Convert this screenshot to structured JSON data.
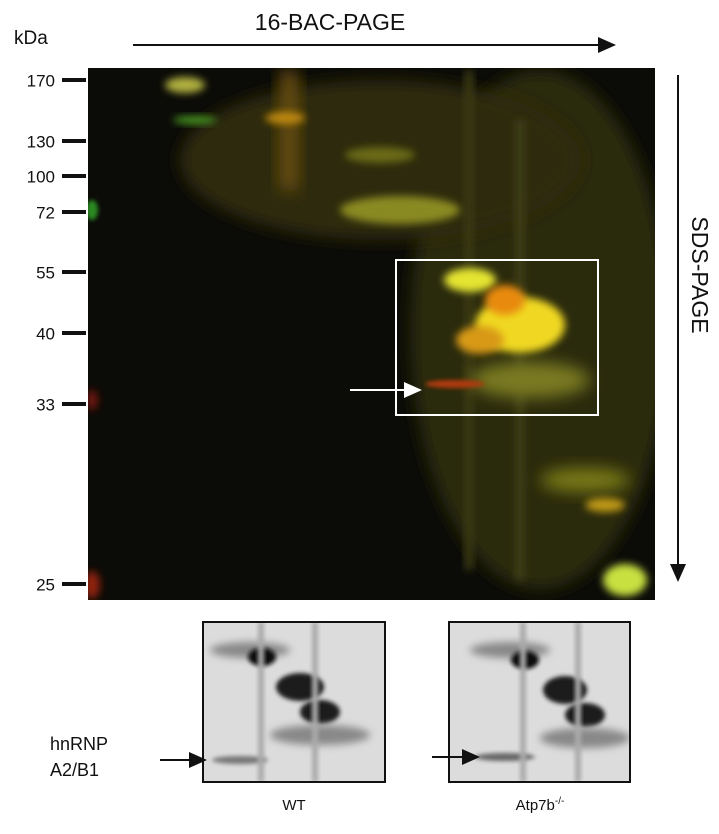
{
  "figure": {
    "horizontal_axis": "16-BAC-PAGE",
    "vertical_axis": "SDS-PAGE",
    "unit": "kDa",
    "markers": [
      170,
      130,
      100,
      72,
      55,
      40,
      33,
      25
    ],
    "protein_label_line1": "hnRNP",
    "protein_label_line2": "A2/B1",
    "panels": [
      {
        "label": "WT"
      },
      {
        "label": "Atp7b",
        "label_superscript": "-/-"
      }
    ]
  }
}
